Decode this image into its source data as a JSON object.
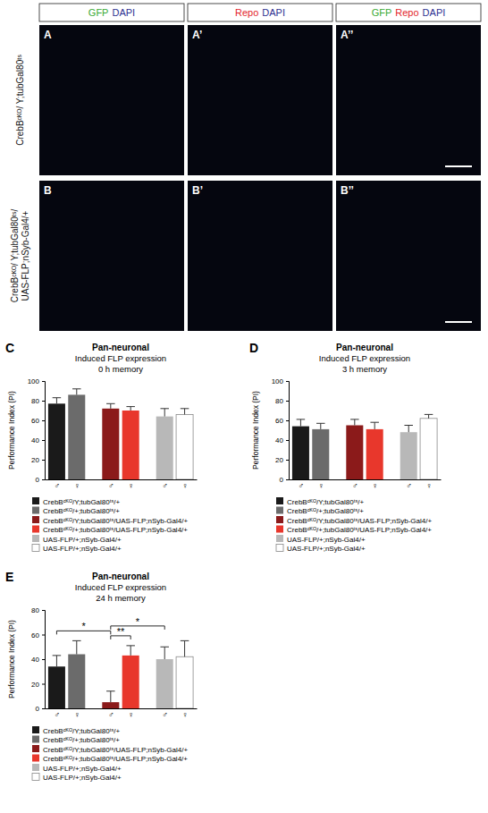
{
  "figure": {
    "column_headers": [
      [
        {
          "text": "GFP",
          "color": "#3aaa35"
        },
        {
          "text": "DAPI",
          "color": "#2e3192"
        }
      ],
      [
        {
          "text": "Repo",
          "color": "#e3242b"
        },
        {
          "text": "DAPI",
          "color": "#2e3192"
        }
      ],
      [
        {
          "text": "GFP",
          "color": "#3aaa35"
        },
        {
          "text": "Repo",
          "color": "#e3242b"
        },
        {
          "text": "DAPI",
          "color": "#2e3192"
        }
      ]
    ],
    "rows": [
      {
        "label": [
          "CrebBᶜᴷᴼ/ Y;tubGal80ᵗˢ"
        ],
        "panels": [
          "A",
          "A’",
          "A’’"
        ]
      },
      {
        "label": [
          "CrebBᶜᴷᴼ/ Y;tubGal80ᵗˢ/",
          "UAS-FLP;nSyb-Gal4/+"
        ],
        "panels": [
          "B",
          "B’",
          "B’’"
        ]
      }
    ]
  },
  "chart_data": [
    {
      "type": "bar",
      "panel": "C",
      "title": "Pan-neuronal",
      "subtitle": [
        "Induced FLP expression",
        "0 h memory"
      ],
      "y_label": "Performance Index (PI)",
      "categories": [
        "♂",
        "♀",
        "♂",
        "♀",
        "♂",
        "♀"
      ],
      "ylim": [
        0,
        100
      ],
      "yticks": [
        0,
        20,
        40,
        60,
        80,
        100
      ],
      "legend": "bottom",
      "series": [
        {
          "name": "CrebBᶜᴷᴼ/Y;tubGal80ᵗˢ/+",
          "color": "#1a1a1a",
          "values": [
            77,
            null,
            null,
            null,
            null,
            null
          ],
          "errors": [
            6,
            null,
            null,
            null,
            null,
            null
          ]
        },
        {
          "name": "CrebBᶜᴷᴼ/+;tubGal80ᵗˢ/+",
          "color": "#6b6b6b",
          "values": [
            null,
            86,
            null,
            null,
            null,
            null
          ],
          "errors": [
            null,
            6,
            null,
            null,
            null,
            null
          ]
        },
        {
          "name": "CrebBᶜᴷᴼ/Y;tubGal80ᵗˢ/UAS-FLP;nSyb-Gal4/+",
          "color": "#8b1a1a",
          "values": [
            null,
            null,
            72,
            null,
            null,
            null
          ],
          "errors": [
            null,
            null,
            5,
            null,
            null,
            null
          ]
        },
        {
          "name": "CrebBᶜᴷᴼ/+;tubGal80ᵗˢ/UAS-FLP;nSyb-Gal4/+",
          "color": "#e8372c",
          "values": [
            null,
            null,
            null,
            70,
            null,
            null
          ],
          "errors": [
            null,
            null,
            null,
            4,
            null,
            null
          ]
        },
        {
          "name": "UAS-FLP/+;nSyb-Gal4/+",
          "color": "#b8b8b8",
          "values": [
            null,
            null,
            null,
            null,
            64,
            null
          ],
          "errors": [
            null,
            null,
            null,
            null,
            8,
            null
          ]
        },
        {
          "name": "UAS-FLP/+;nSyb-Gal4/+",
          "color": "#ffffff",
          "values": [
            null,
            null,
            null,
            null,
            null,
            66
          ],
          "errors": [
            null,
            null,
            null,
            null,
            null,
            6
          ]
        }
      ]
    },
    {
      "type": "bar",
      "panel": "D",
      "title": "Pan-neuronal",
      "subtitle": [
        "Induced FLP expression",
        "3 h memory"
      ],
      "y_label": "Performance Index (PI)",
      "categories": [
        "♂",
        "♀",
        "♂",
        "♀",
        "♂",
        "♀"
      ],
      "ylim": [
        0,
        100
      ],
      "yticks": [
        0,
        20,
        40,
        60,
        80,
        100
      ],
      "legend": "bottom",
      "series": [
        {
          "name": "CrebBᶜᴷᴼ/Y;tubGal80ᵗˢ/+",
          "color": "#1a1a1a",
          "values": [
            54,
            null,
            null,
            null,
            null,
            null
          ],
          "errors": [
            7,
            null,
            null,
            null,
            null,
            null
          ]
        },
        {
          "name": "CrebBᶜᴷᴼ/+;tubGal80ᵗˢ/+",
          "color": "#6b6b6b",
          "values": [
            null,
            51,
            null,
            null,
            null,
            null
          ],
          "errors": [
            null,
            6,
            null,
            null,
            null,
            null
          ]
        },
        {
          "name": "CrebBᶜᴷᴼ/Y;tubGal80ᵗˢ/UAS-FLP;nSyb-Gal4/+",
          "color": "#8b1a1a",
          "values": [
            null,
            null,
            55,
            null,
            null,
            null
          ],
          "errors": [
            null,
            null,
            6,
            null,
            null,
            null
          ]
        },
        {
          "name": "CrebBᶜᴷᴼ/+;tubGal80ᵗˢ/UAS-FLP;nSyb-Gal4/+",
          "color": "#e8372c",
          "values": [
            null,
            null,
            null,
            51,
            null,
            null
          ],
          "errors": [
            null,
            null,
            null,
            7,
            null,
            null
          ]
        },
        {
          "name": "UAS-FLP/+;nSyb-Gal4/+",
          "color": "#b8b8b8",
          "values": [
            null,
            null,
            null,
            null,
            48,
            null
          ],
          "errors": [
            null,
            null,
            null,
            null,
            7,
            null
          ]
        },
        {
          "name": "UAS-FLP/+;nSyb-Gal4/+",
          "color": "#ffffff",
          "values": [
            null,
            null,
            null,
            null,
            null,
            62
          ],
          "errors": [
            null,
            null,
            null,
            null,
            null,
            4
          ]
        }
      ]
    },
    {
      "type": "bar",
      "panel": "E",
      "title": "Pan-neuronal",
      "subtitle": [
        "Induced FLP expression",
        "24 h memory"
      ],
      "y_label": "Performance Index (PI)",
      "categories": [
        "♂",
        "♀",
        "♂",
        "♀",
        "♂",
        "♀"
      ],
      "ylim": [
        0,
        80
      ],
      "yticks": [
        0,
        20,
        40,
        60,
        80
      ],
      "legend": "bottom",
      "series": [
        {
          "name": "CrebBᶜᴷᴼ/Y;tubGal80ᵗˢ/+",
          "color": "#1a1a1a",
          "values": [
            34,
            null,
            null,
            null,
            null,
            null
          ],
          "errors": [
            9,
            null,
            null,
            null,
            null,
            null
          ]
        },
        {
          "name": "CrebBᶜᴷᴼ/+;tubGal80ᵗˢ/+",
          "color": "#6b6b6b",
          "values": [
            null,
            44,
            null,
            null,
            null,
            null
          ],
          "errors": [
            null,
            11,
            null,
            null,
            null,
            null
          ]
        },
        {
          "name": "CrebBᶜᴷᴼ/Y;tubGal80ᵗˢ/UAS-FLP;nSyb-Gal4/+",
          "color": "#8b1a1a",
          "values": [
            null,
            null,
            5,
            null,
            null,
            null
          ],
          "errors": [
            null,
            null,
            9,
            null,
            null,
            null
          ]
        },
        {
          "name": "CrebBᶜᴷᴼ/+;tubGal80ᵗˢ/UAS-FLP;nSyb-Gal4/+",
          "color": "#e8372c",
          "values": [
            null,
            null,
            null,
            43,
            null,
            null
          ],
          "errors": [
            null,
            null,
            null,
            8,
            null,
            null
          ]
        },
        {
          "name": "UAS-FLP/+;nSyb-Gal4/+",
          "color": "#b8b8b8",
          "values": [
            null,
            null,
            null,
            null,
            40,
            null
          ],
          "errors": [
            null,
            null,
            null,
            null,
            10,
            null
          ]
        },
        {
          "name": "UAS-FLP/+;nSyb-Gal4/+",
          "color": "#ffffff",
          "values": [
            null,
            null,
            null,
            null,
            null,
            42
          ],
          "errors": [
            null,
            null,
            null,
            null,
            null,
            13
          ]
        }
      ],
      "annotations": [
        {
          "text": "*",
          "from": 0,
          "to": 2
        },
        {
          "text": "**",
          "from": 2,
          "to": 3
        },
        {
          "text": "*",
          "from": 2,
          "to": 4
        }
      ]
    }
  ]
}
